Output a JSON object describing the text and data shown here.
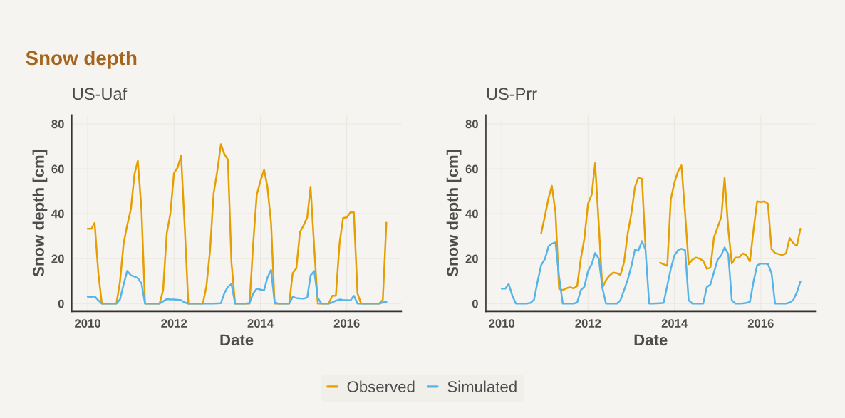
{
  "chart_data": [
    {
      "type": "line",
      "title": "Snow depth",
      "subtitle": "US-Uaf",
      "xlabel": "Date",
      "ylabel": "Snow depth [cm]",
      "x": [
        "2010-01",
        "2010-02",
        "2010-03",
        "2010-04",
        "2010-05",
        "2010-06",
        "2010-07",
        "2010-08",
        "2010-09",
        "2010-10",
        "2010-11",
        "2010-12",
        "2011-01",
        "2011-02",
        "2011-03",
        "2011-04",
        "2011-05",
        "2011-06",
        "2011-07",
        "2011-08",
        "2011-09",
        "2011-10",
        "2011-11",
        "2011-12",
        "2012-01",
        "2012-02",
        "2012-03",
        "2012-04",
        "2012-05",
        "2012-06",
        "2012-07",
        "2012-08",
        "2012-09",
        "2012-10",
        "2012-11",
        "2012-12",
        "2013-01",
        "2013-02",
        "2013-03",
        "2013-04",
        "2013-05",
        "2013-06",
        "2013-07",
        "2013-08",
        "2013-09",
        "2013-10",
        "2013-11",
        "2013-12",
        "2014-01",
        "2014-02",
        "2014-03",
        "2014-04",
        "2014-05",
        "2014-06",
        "2014-07",
        "2014-08",
        "2014-09",
        "2014-10",
        "2014-11",
        "2014-12",
        "2015-01",
        "2015-02",
        "2015-03",
        "2015-04",
        "2015-05",
        "2015-06",
        "2015-07",
        "2015-08",
        "2015-09",
        "2015-10",
        "2015-11",
        "2015-12",
        "2016-01",
        "2016-02",
        "2016-03",
        "2016-04",
        "2016-05",
        "2016-06",
        "2016-07",
        "2016-08",
        "2016-09",
        "2016-10",
        "2016-11",
        "2016-12"
      ],
      "series": [
        {
          "name": "Observed",
          "color": "#e69f00",
          "values": [
            33.3,
            33.3,
            35.9,
            13.6,
            0,
            0,
            0,
            0,
            0,
            9.6,
            26.8,
            34.8,
            41.9,
            57.6,
            63.6,
            41.9,
            0,
            0,
            0,
            0,
            0,
            6,
            31.3,
            39.9,
            58.1,
            60.6,
            65.9,
            33.8,
            0,
            0,
            0,
            0,
            0,
            7.6,
            23.7,
            49,
            59,
            71,
            66.7,
            64.1,
            18.2,
            0,
            0,
            0,
            0,
            0,
            26.8,
            48.5,
            54.5,
            59.6,
            52,
            35.9,
            0,
            0,
            0,
            0,
            0,
            13.6,
            15.7,
            31.8,
            34.8,
            38.4,
            52,
            24.7,
            0,
            0,
            0,
            0,
            3.5,
            3.5,
            26.8,
            38.1,
            38.4,
            40.6,
            40.6,
            4.5,
            0,
            0,
            0,
            0,
            0,
            0,
            1.7,
            36
          ]
        },
        {
          "name": "Simulated",
          "color": "#56b4e9",
          "values": [
            3.1,
            3,
            3.2,
            1.5,
            0,
            0,
            0,
            0,
            0,
            1.8,
            8.5,
            14.5,
            12.6,
            12,
            11.3,
            9,
            0,
            0,
            0,
            0,
            0,
            1,
            2,
            1.8,
            1.8,
            1.7,
            1.5,
            0.5,
            0,
            0,
            0,
            0,
            0,
            0,
            0,
            0,
            0.1,
            0.2,
            4.5,
            7.5,
            8.7,
            0,
            0,
            0,
            0,
            0.3,
            4.5,
            6.7,
            6.2,
            5.9,
            11.5,
            15,
            0.7,
            0,
            0,
            0,
            0,
            3,
            2.5,
            2.3,
            2.2,
            2.7,
            12.5,
            14.5,
            2.5,
            0,
            0,
            0,
            0.5,
            1.3,
            1.8,
            1.6,
            1.5,
            1.4,
            3.5,
            0,
            0,
            0,
            0,
            0,
            0,
            0,
            0.5,
            0.8
          ]
        }
      ],
      "xlim": [
        "2009-08-20",
        "2017-04-07"
      ],
      "xticks": [
        "2010",
        "2012",
        "2014",
        "2016"
      ],
      "ylim": [
        -3.5,
        84
      ],
      "yticks": [
        0,
        20,
        40,
        60,
        80
      ],
      "grid": true,
      "legend": "bottom"
    },
    {
      "type": "line",
      "subtitle": "US-Prr",
      "xlabel": "Date",
      "ylabel": "Snow depth [cm]",
      "x": [
        "2010-01",
        "2010-02",
        "2010-03",
        "2010-04",
        "2010-05",
        "2010-06",
        "2010-07",
        "2010-08",
        "2010-09",
        "2010-10",
        "2010-11",
        "2010-12",
        "2011-01",
        "2011-02",
        "2011-03",
        "2011-04",
        "2011-05",
        "2011-06",
        "2011-07",
        "2011-08",
        "2011-09",
        "2011-10",
        "2011-11",
        "2011-12",
        "2012-01",
        "2012-02",
        "2012-03",
        "2012-04",
        "2012-05",
        "2012-06",
        "2012-07",
        "2012-08",
        "2012-09",
        "2012-10",
        "2012-11",
        "2012-12",
        "2013-01",
        "2013-02",
        "2013-03",
        "2013-04",
        "2013-05",
        "2013-06",
        "2013-07",
        "2013-08",
        "2013-09",
        "2013-10",
        "2013-11",
        "2013-12",
        "2014-01",
        "2014-02",
        "2014-03",
        "2014-04",
        "2014-05",
        "2014-06",
        "2014-07",
        "2014-08",
        "2014-09",
        "2014-10",
        "2014-11",
        "2014-12",
        "2015-01",
        "2015-02",
        "2015-03",
        "2015-04",
        "2015-05",
        "2015-06",
        "2015-07",
        "2015-08",
        "2015-09",
        "2015-10",
        "2015-11",
        "2015-12",
        "2016-01",
        "2016-02",
        "2016-03",
        "2016-04",
        "2016-05",
        "2016-06",
        "2016-07",
        "2016-08",
        "2016-09",
        "2016-10",
        "2016-11",
        "2016-12"
      ],
      "series": [
        {
          "name": "Observed",
          "color": "#e69f00",
          "values": [
            null,
            null,
            null,
            null,
            null,
            null,
            null,
            null,
            null,
            null,
            null,
            31.3,
            38.9,
            47,
            52.4,
            40.5,
            6.6,
            6,
            6.8,
            7.2,
            6.8,
            7.8,
            20,
            29,
            44.5,
            48.5,
            62.5,
            35,
            7,
            10.5,
            12.5,
            13.8,
            13.5,
            12.7,
            18.5,
            31,
            40,
            52,
            56,
            55.5,
            25.5,
            null,
            null,
            null,
            18.2,
            17.5,
            16.8,
            46.5,
            54,
            59,
            61.5,
            40,
            17.5,
            19.5,
            20.5,
            20,
            19,
            15.5,
            16,
            29.5,
            34,
            38.5,
            56,
            33,
            17.8,
            20.5,
            20.5,
            22.3,
            21.5,
            18.8,
            33,
            45.5,
            45.2,
            45.5,
            44.5,
            24.2,
            22.5,
            22,
            21.6,
            22.3,
            29.2,
            27,
            25.7,
            33.3
          ]
        },
        {
          "name": "Simulated",
          "color": "#56b4e9",
          "values": [
            6.7,
            6.7,
            8.7,
            3.5,
            0,
            0,
            0,
            0,
            0.3,
            1.7,
            10,
            17.2,
            19.8,
            25.5,
            26.7,
            27.2,
            12,
            0,
            0,
            0,
            0,
            0.5,
            6,
            7.5,
            14.5,
            17.5,
            22.5,
            20,
            7,
            0,
            0,
            0,
            0,
            1.5,
            6,
            10.5,
            16.5,
            24,
            23.5,
            27.8,
            24,
            0,
            0,
            0.1,
            0.2,
            0.3,
            8,
            15.5,
            21.5,
            23.8,
            24.4,
            23.8,
            1.5,
            0,
            0,
            0,
            0,
            7.3,
            8.5,
            14,
            19.5,
            21.5,
            25,
            22,
            1.5,
            0,
            0,
            0.1,
            0.3,
            0.8,
            10,
            17,
            17.8,
            17.8,
            17.7,
            13.5,
            0,
            0,
            0,
            0,
            0.5,
            1.5,
            5,
            9.8
          ]
        }
      ],
      "xlim": [
        "2009-08-20",
        "2017-04-07"
      ],
      "xticks": [
        "2010",
        "2012",
        "2014",
        "2016"
      ],
      "ylim": [
        -3.5,
        84
      ],
      "yticks": [
        0,
        20,
        40,
        60,
        80
      ],
      "grid": true,
      "legend": "bottom"
    }
  ]
}
